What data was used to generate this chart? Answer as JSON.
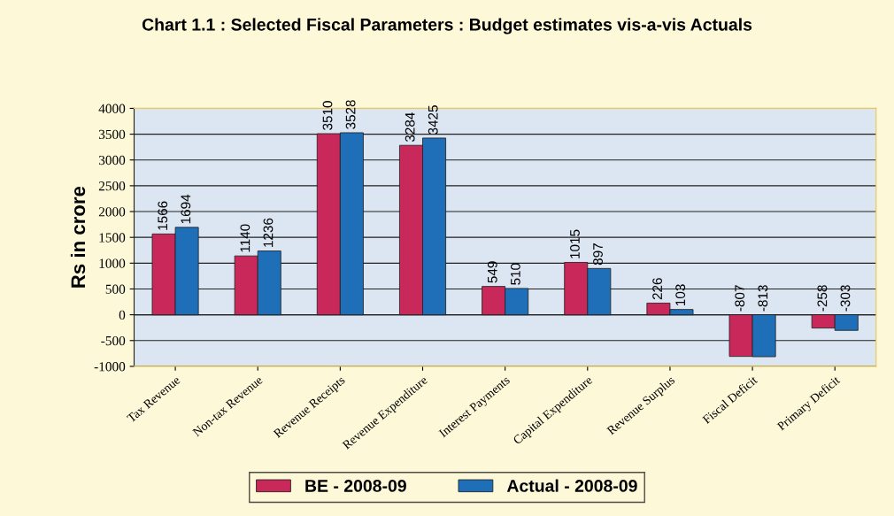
{
  "chart_data": {
    "type": "bar",
    "title": "Chart 1.1 : Selected Fiscal Parameters : Budget estimates vis-a-vis Actuals",
    "ylabel": "Rs in crore",
    "categories": [
      "Tax Revenue",
      "Non-tax Revenue",
      "Revenue Receipts",
      "Revenue Expenditure",
      "Interest Payments",
      "Capital Expenditure",
      "Revenue Surplus",
      "Fiscal Deficit",
      "Primary Deficit"
    ],
    "series": [
      {
        "name": "BE - 2008-09",
        "color": "#c8285a",
        "values": [
          1566,
          1140,
          3510,
          3284,
          549,
          1015,
          226,
          -807,
          -258
        ]
      },
      {
        "name": "Actual - 2008-09",
        "color": "#1f6fb8",
        "values": [
          1694,
          1236,
          3528,
          3425,
          510,
          897,
          103,
          -813,
          -303
        ]
      }
    ],
    "ylim": [
      -1000,
      4000
    ],
    "yticks": [
      -1000,
      -500,
      0,
      500,
      1000,
      1500,
      2000,
      2500,
      3000,
      3500,
      4000
    ],
    "grid": "y",
    "legend": "bottom",
    "data_labels": true
  }
}
